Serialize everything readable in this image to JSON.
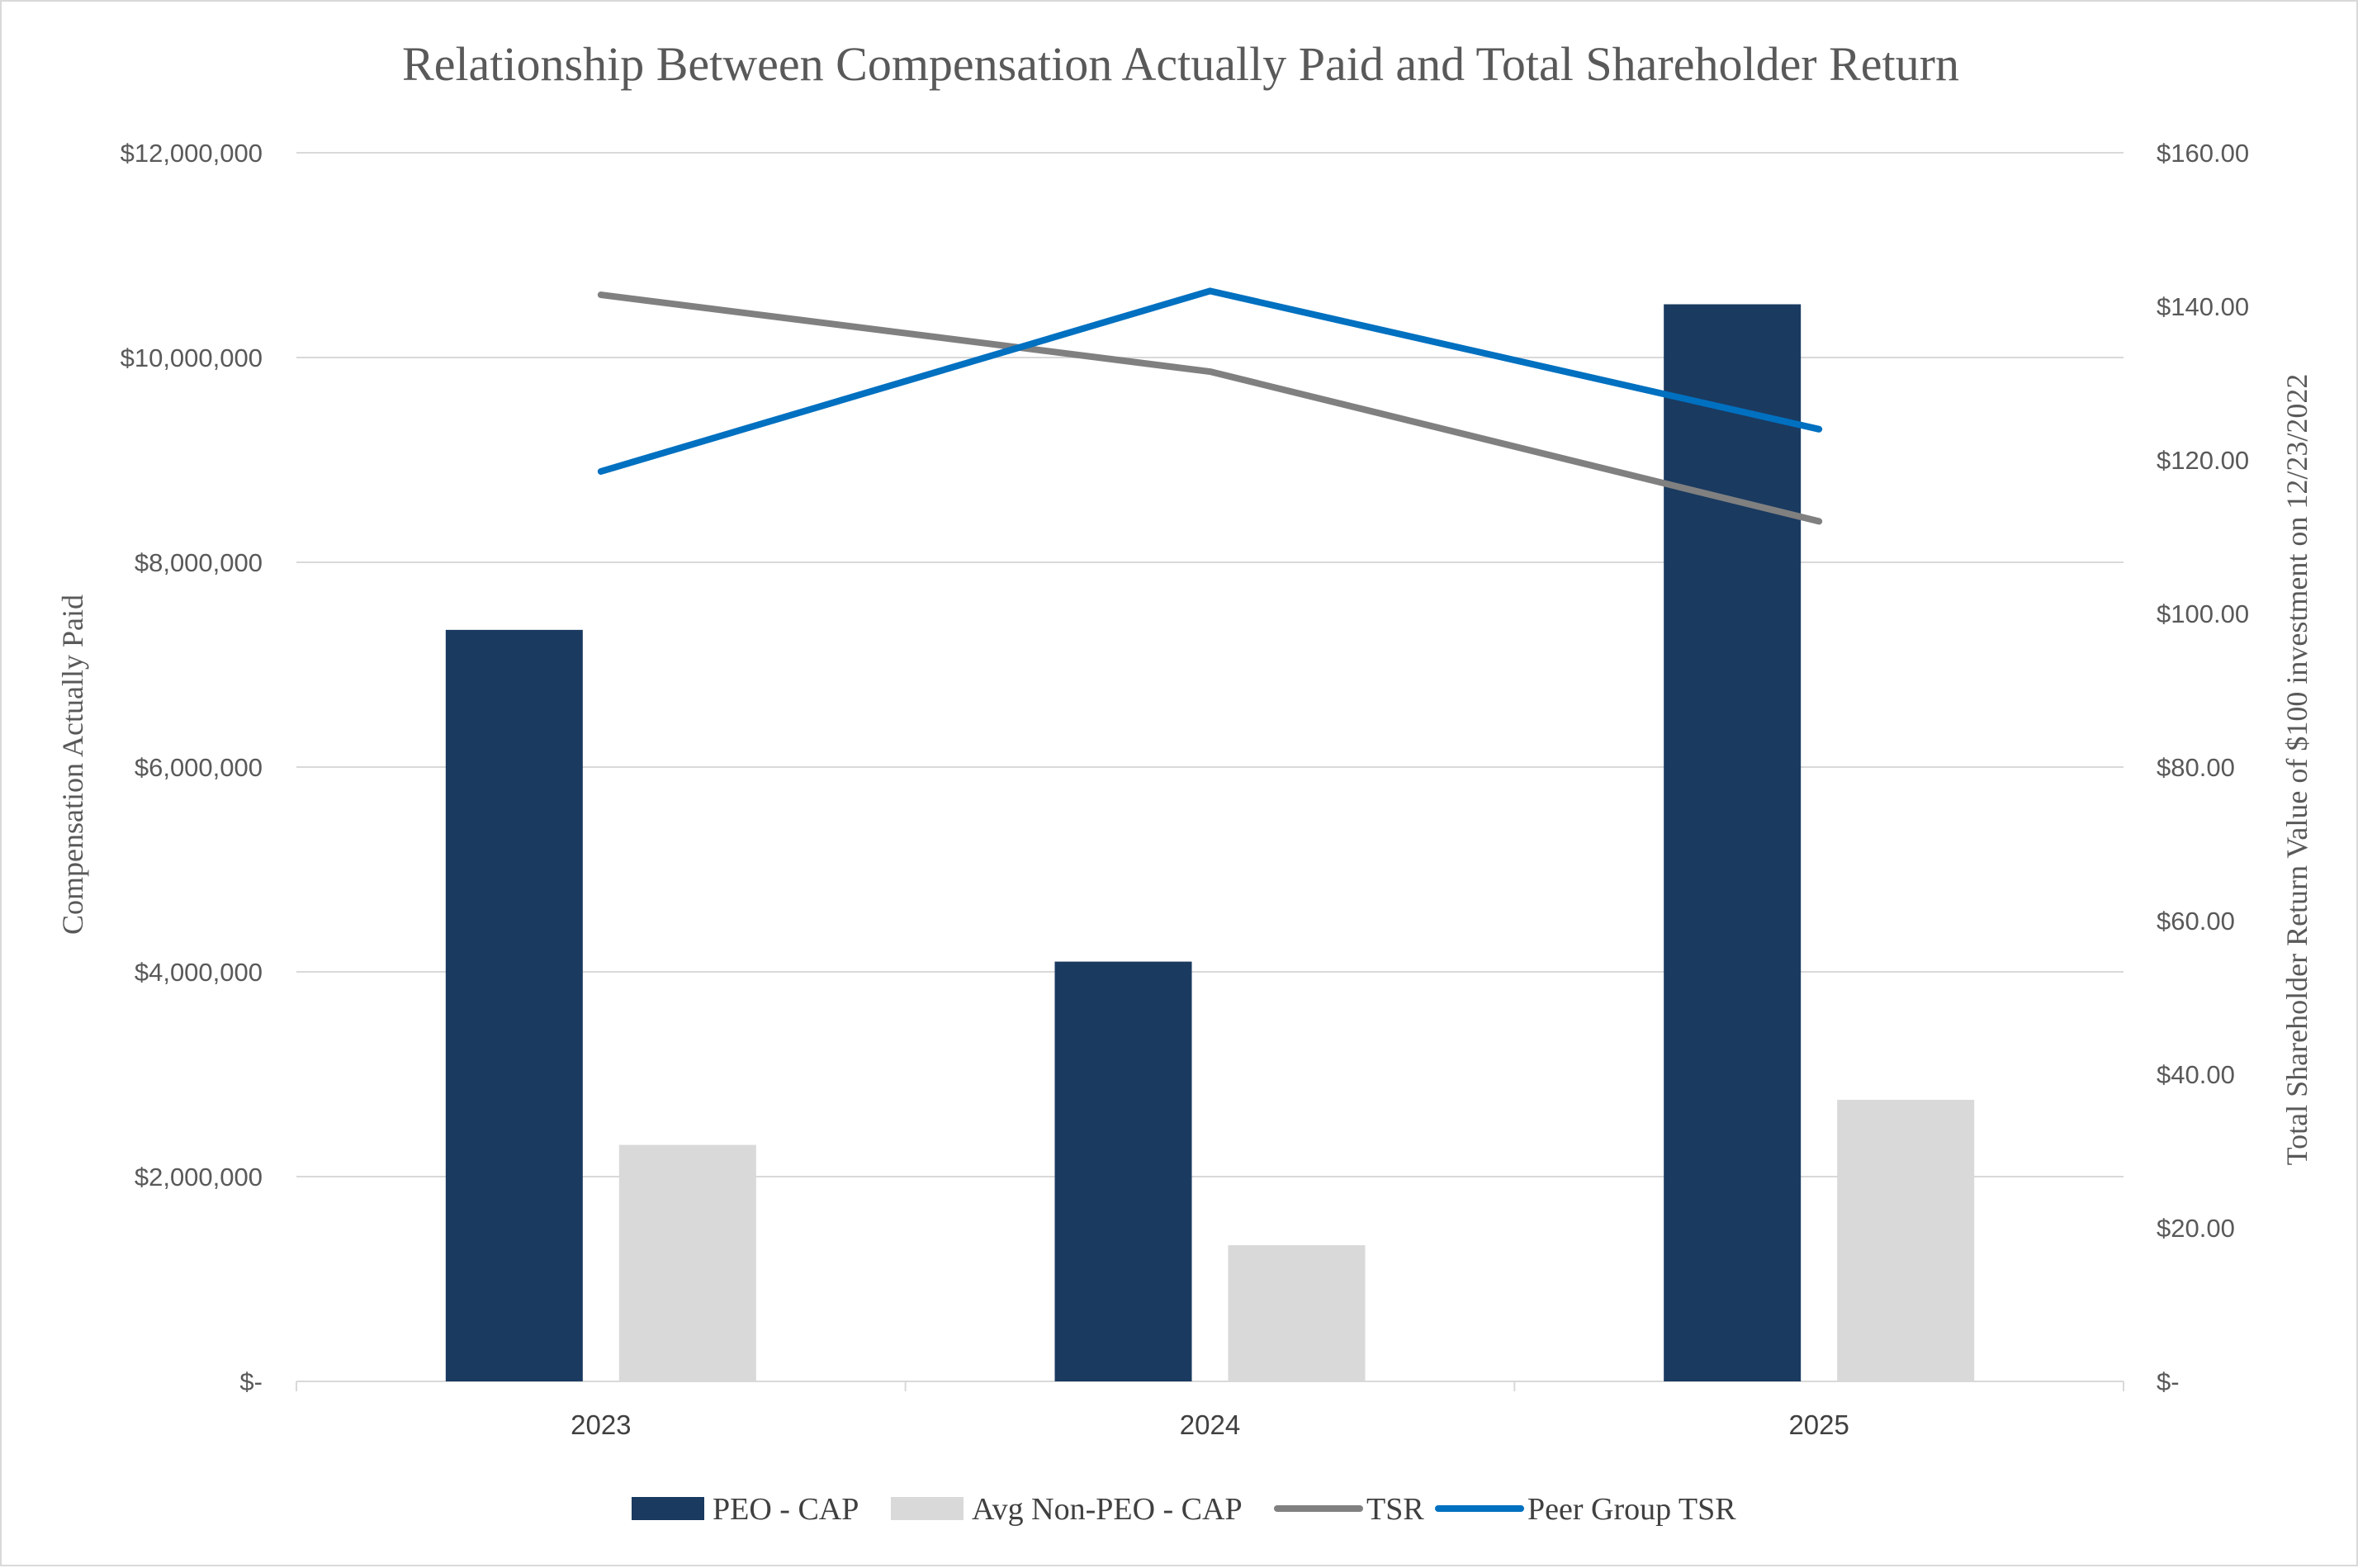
{
  "colors": {
    "peo_cap": "#1a3a60",
    "avg_non_peo_cap": "#d9d9d9",
    "tsr": "#808080",
    "peer_tsr": "#0070c0",
    "grid": "#d9d9d9",
    "text": "#595959"
  },
  "chart_data": {
    "type": "bar",
    "title": "Relationship Between Compensation Actually Paid and Total Shareholder Return",
    "categories": [
      "2023",
      "2024",
      "2025"
    ],
    "xlabel": "",
    "ylabel": "Compensation Actually Paid",
    "y2label": "Total Shareholder Return Value of $100 investment on 12/23/2022",
    "ylim": [
      0,
      12000000
    ],
    "y2lim": [
      0,
      160
    ],
    "yticks": [
      "$-",
      "$2,000,000",
      "$4,000,000",
      "$6,000,000",
      "$8,000,000",
      "$10,000,000",
      "$12,000,000"
    ],
    "y2ticks": [
      "$-",
      "$20.00",
      "$40.00",
      "$60.00",
      "$80.00",
      "$100.00",
      "$120.00",
      "$140.00",
      "$160.00"
    ],
    "grid": true,
    "legend_position": "bottom",
    "series": [
      {
        "name": "PEO - CAP",
        "type": "bar",
        "axis": "left",
        "values": [
          7340000,
          4100000,
          10520000
        ]
      },
      {
        "name": "Avg Non-PEO - CAP",
        "type": "bar",
        "axis": "left",
        "values": [
          2310000,
          1330000,
          2750000
        ]
      },
      {
        "name": "TSR",
        "type": "line",
        "axis": "right",
        "values": [
          141.5,
          131.5,
          112.0
        ]
      },
      {
        "name": "Peer Group TSR",
        "type": "line",
        "axis": "right",
        "values": [
          118.5,
          142.0,
          124.0
        ]
      }
    ]
  }
}
